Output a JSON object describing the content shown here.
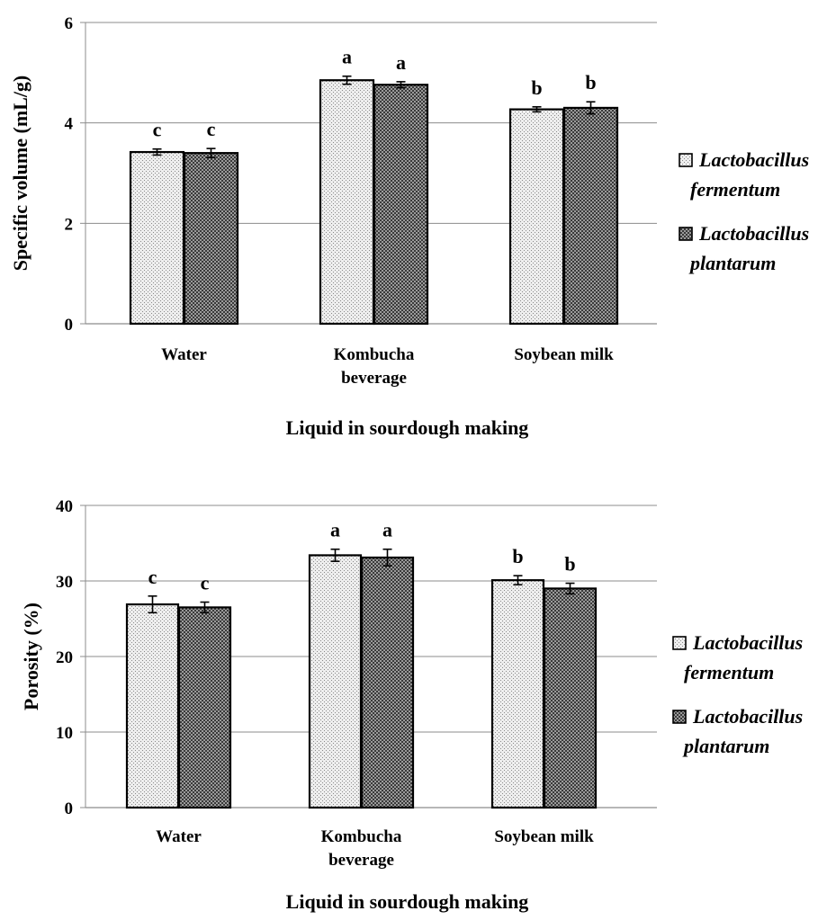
{
  "chart_data": [
    {
      "type": "bar",
      "categories": [
        [
          "Water"
        ],
        [
          "Kombucha",
          "beverage"
        ],
        [
          "Soybean milk"
        ]
      ],
      "xlabel": "Liquid in sourdough making",
      "ylabel": "Specific volume (mL/g)",
      "ylim": [
        0,
        6
      ],
      "yticks": [
        0,
        2,
        4,
        6
      ],
      "grid": true,
      "legend_position": "right",
      "series": [
        {
          "name": "Lactobacillus fermentum",
          "legend_lines": [
            "Lactobacillus",
            "fermentum"
          ],
          "values": [
            3.42,
            4.85,
            4.27
          ],
          "errors": [
            0.06,
            0.08,
            0.05
          ],
          "labels": [
            "c",
            "a",
            "b"
          ],
          "pattern": "light"
        },
        {
          "name": "Lactobacillus plantarum",
          "legend_lines": [
            "Lactobacillus",
            "plantarum"
          ],
          "values": [
            3.4,
            4.76,
            4.3
          ],
          "errors": [
            0.09,
            0.06,
            0.12
          ],
          "labels": [
            "c",
            "a",
            "b"
          ],
          "pattern": "dark"
        }
      ]
    },
    {
      "type": "bar",
      "categories": [
        [
          "Water"
        ],
        [
          "Kombucha",
          "beverage"
        ],
        [
          "Soybean milk"
        ]
      ],
      "xlabel": "Liquid in sourdough making",
      "ylabel": "Porosity (%)",
      "ylim": [
        0,
        40
      ],
      "yticks": [
        0,
        10,
        20,
        30,
        40
      ],
      "grid": true,
      "legend_position": "right",
      "series": [
        {
          "name": "Lactobacillus fermentum",
          "legend_lines": [
            "Lactobacillus",
            "fermentum"
          ],
          "values": [
            26.9,
            33.4,
            30.1
          ],
          "errors": [
            1.1,
            0.8,
            0.6
          ],
          "labels": [
            "c",
            "a",
            "b"
          ],
          "pattern": "light"
        },
        {
          "name": "Lactobacillus plantarum",
          "legend_lines": [
            "Lactobacillus",
            "plantarum"
          ],
          "values": [
            26.5,
            33.1,
            29.0
          ],
          "errors": [
            0.7,
            1.1,
            0.7
          ],
          "labels": [
            "c",
            "a",
            "b"
          ],
          "pattern": "dark"
        }
      ]
    }
  ]
}
